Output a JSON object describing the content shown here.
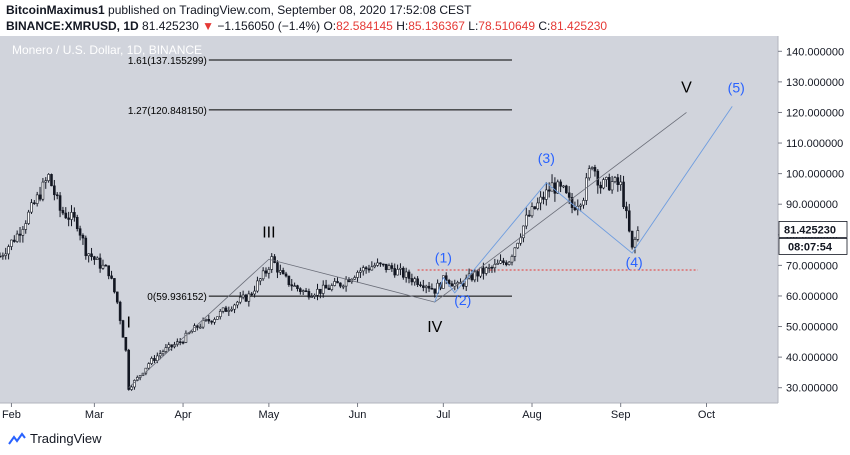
{
  "header": {
    "author": "BitcoinMaximus1",
    "published_text": "published on TradingView.com, September 08, 2020 17:52:08 CEST",
    "symbol": "BINANCE:XMRUSD, 1D",
    "last": "81.425230",
    "change_arrow": "▼",
    "change": "−1.156050 (−1.4%)",
    "o_label": "O:",
    "o_value": "82.584145",
    "h_label": "H:",
    "h_value": "85.136367",
    "l_label": "L:",
    "l_value": "78.510649",
    "c_label": "C:",
    "c_value": "81.425230"
  },
  "footer": {
    "brand": "TradingView"
  },
  "chart_data": {
    "type": "candlestick",
    "title": "Monero / U.S. Dollar, 1D, BINANCE",
    "y_ticks": [
      "30.000000",
      "40.000000",
      "50.000000",
      "60.000000",
      "70.000000",
      "80.000000",
      "90.000000",
      "100.000000",
      "110.000000",
      "120.000000",
      "130.000000",
      "140.000000"
    ],
    "ylim": [
      25,
      145
    ],
    "x_ticks": [
      "Feb",
      "Mar",
      "Apr",
      "May",
      "Jun",
      "Jul",
      "Aug",
      "Sep",
      "Oct"
    ],
    "x_tick_dates": [
      "2020-02-01",
      "2020-03-01",
      "2020-04-01",
      "2020-05-01",
      "2020-06-01",
      "2020-07-01",
      "2020-08-01",
      "2020-09-01",
      "2020-10-01"
    ],
    "xlim": [
      "2020-01-28",
      "2020-10-26"
    ],
    "last_price_label": "81.425230",
    "countdown_label": "08:07:54",
    "fib_levels": [
      {
        "label": "1.61(137.155299)",
        "value": 137.155299
      },
      {
        "label": "1.27(120.848150)",
        "value": 120.84815
      },
      {
        "label": "0(59.936152)",
        "value": 59.936152
      }
    ],
    "support_line": {
      "value": 68.5,
      "color": "#e53935"
    },
    "elliott_main": [
      {
        "label": "I",
        "date": "2020-03-13",
        "value": 30
      },
      {
        "label": "III",
        "date": "2020-05-01",
        "value": 72
      },
      {
        "label": "IV",
        "date": "2020-06-28",
        "value": 58
      },
      {
        "label": "V",
        "date": "2020-09-24",
        "value": 120
      }
    ],
    "elliott_sub": [
      {
        "label": "(1)",
        "date": "2020-07-01",
        "value": 67
      },
      {
        "label": "(2)",
        "date": "2020-07-05",
        "value": 61
      },
      {
        "label": "(3)",
        "date": "2020-08-06",
        "value": 97
      },
      {
        "label": "(4)",
        "date": "2020-09-05",
        "value": 74
      },
      {
        "label": "(5)",
        "date": "2020-10-10",
        "value": 122
      }
    ],
    "price_path": [
      [
        "2020-01-28",
        73
      ],
      [
        "2020-02-03",
        80
      ],
      [
        "2020-02-09",
        90
      ],
      [
        "2020-02-14",
        99
      ],
      [
        "2020-02-18",
        88
      ],
      [
        "2020-02-24",
        84
      ],
      [
        "2020-02-27",
        75
      ],
      [
        "2020-03-02",
        71
      ],
      [
        "2020-03-06",
        68
      ],
      [
        "2020-03-09",
        58
      ],
      [
        "2020-03-12",
        42
      ],
      [
        "2020-03-13",
        30
      ],
      [
        "2020-03-16",
        33
      ],
      [
        "2020-03-20",
        38
      ],
      [
        "2020-03-25",
        42
      ],
      [
        "2020-03-31",
        45
      ],
      [
        "2020-04-06",
        50
      ],
      [
        "2020-04-12",
        53
      ],
      [
        "2020-04-18",
        57
      ],
      [
        "2020-04-24",
        60
      ],
      [
        "2020-04-30",
        68
      ],
      [
        "2020-05-02",
        72
      ],
      [
        "2020-05-06",
        66
      ],
      [
        "2020-05-10",
        63
      ],
      [
        "2020-05-14",
        61
      ],
      [
        "2020-05-20",
        62
      ],
      [
        "2020-05-26",
        64
      ],
      [
        "2020-06-01",
        68
      ],
      [
        "2020-06-07",
        70
      ],
      [
        "2020-06-13",
        69
      ],
      [
        "2020-06-19",
        66
      ],
      [
        "2020-06-25",
        64
      ],
      [
        "2020-06-28",
        62
      ],
      [
        "2020-07-02",
        66
      ],
      [
        "2020-07-06",
        63
      ],
      [
        "2020-07-12",
        67
      ],
      [
        "2020-07-18",
        69
      ],
      [
        "2020-07-24",
        72
      ],
      [
        "2020-07-30",
        85
      ],
      [
        "2020-08-04",
        91
      ],
      [
        "2020-08-08",
        96
      ],
      [
        "2020-08-12",
        94
      ],
      [
        "2020-08-15",
        89
      ],
      [
        "2020-08-19",
        93
      ],
      [
        "2020-08-22",
        104
      ],
      [
        "2020-08-25",
        96
      ],
      [
        "2020-08-29",
        97
      ],
      [
        "2020-09-01",
        96
      ],
      [
        "2020-09-03",
        86
      ],
      [
        "2020-09-05",
        75
      ],
      [
        "2020-09-07",
        81.4
      ]
    ]
  }
}
